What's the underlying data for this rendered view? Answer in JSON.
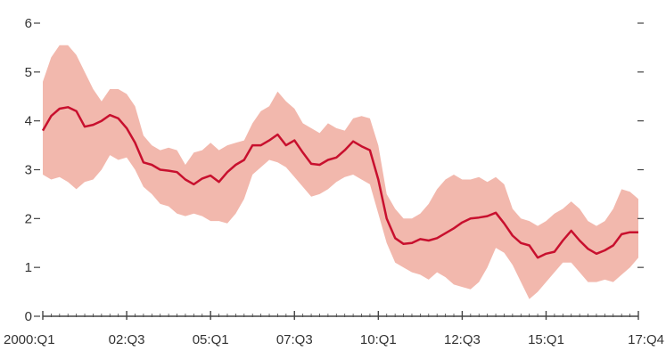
{
  "chart_data": {
    "type": "line",
    "title": "",
    "xlabel": "",
    "ylabel": "",
    "x_tick_labels": [
      "2000:Q1",
      "02:Q3",
      "05:Q1",
      "07:Q3",
      "10:Q1",
      "12:Q3",
      "15:Q1",
      "17:Q4"
    ],
    "y_tick_labels": [
      "0",
      "1",
      "2",
      "3",
      "4",
      "5",
      "6"
    ],
    "ylim": [
      0,
      6
    ],
    "grid": false,
    "legend": "none",
    "x": [
      "2000:Q1",
      "2000:Q2",
      "2000:Q3",
      "2000:Q4",
      "2001:Q1",
      "2001:Q2",
      "2001:Q3",
      "2001:Q4",
      "2002:Q1",
      "2002:Q2",
      "2002:Q3",
      "2002:Q4",
      "2003:Q1",
      "2003:Q2",
      "2003:Q3",
      "2003:Q4",
      "2004:Q1",
      "2004:Q2",
      "2004:Q3",
      "2004:Q4",
      "2005:Q1",
      "2005:Q2",
      "2005:Q3",
      "2005:Q4",
      "2006:Q1",
      "2006:Q2",
      "2006:Q3",
      "2006:Q4",
      "2007:Q1",
      "2007:Q2",
      "2007:Q3",
      "2007:Q4",
      "2008:Q1",
      "2008:Q2",
      "2008:Q3",
      "2008:Q4",
      "2009:Q1",
      "2009:Q2",
      "2009:Q3",
      "2009:Q4",
      "2010:Q1",
      "2010:Q2",
      "2010:Q3",
      "2010:Q4",
      "2011:Q1",
      "2011:Q2",
      "2011:Q3",
      "2011:Q4",
      "2012:Q1",
      "2012:Q2",
      "2012:Q3",
      "2012:Q4",
      "2013:Q1",
      "2013:Q2",
      "2013:Q3",
      "2013:Q4",
      "2014:Q1",
      "2014:Q2",
      "2014:Q3",
      "2014:Q4",
      "2015:Q1",
      "2015:Q2",
      "2015:Q3",
      "2015:Q4",
      "2016:Q1",
      "2016:Q2",
      "2016:Q3",
      "2016:Q4",
      "2017:Q1",
      "2017:Q2",
      "2017:Q3",
      "2017:Q4"
    ],
    "series": [
      {
        "values": [
          3.8,
          4.1,
          4.25,
          4.28,
          4.2,
          3.88,
          3.92,
          4.0,
          4.12,
          4.05,
          3.85,
          3.55,
          3.15,
          3.1,
          3.0,
          2.98,
          2.95,
          2.8,
          2.7,
          2.82,
          2.88,
          2.75,
          2.95,
          3.1,
          3.2,
          3.5,
          3.5,
          3.6,
          3.72,
          3.5,
          3.6,
          3.35,
          3.12,
          3.1,
          3.2,
          3.25,
          3.4,
          3.58,
          3.48,
          3.4,
          2.8,
          2.0,
          1.6,
          1.48,
          1.5,
          1.58,
          1.55,
          1.6,
          1.7,
          1.8,
          1.92,
          2.0,
          2.02,
          2.05,
          2.12,
          1.9,
          1.65,
          1.5,
          1.45,
          1.2,
          1.28,
          1.32,
          1.55,
          1.75,
          1.55,
          1.38,
          1.28,
          1.35,
          1.45,
          1.68,
          1.72,
          1.72
        ],
        "color": "#c8102e"
      }
    ],
    "band": {
      "upper": [
        4.8,
        5.3,
        5.55,
        5.55,
        5.35,
        5.0,
        4.65,
        4.4,
        4.65,
        4.65,
        4.55,
        4.3,
        3.7,
        3.5,
        3.4,
        3.45,
        3.4,
        3.1,
        3.35,
        3.4,
        3.55,
        3.4,
        3.5,
        3.55,
        3.6,
        3.95,
        4.2,
        4.3,
        4.6,
        4.4,
        4.25,
        3.95,
        3.85,
        3.75,
        3.95,
        3.85,
        3.8,
        4.05,
        4.1,
        4.05,
        3.5,
        2.5,
        2.2,
        2.0,
        2.0,
        2.1,
        2.3,
        2.6,
        2.8,
        2.9,
        2.8,
        2.8,
        2.85,
        2.75,
        2.85,
        2.7,
        2.2,
        2.0,
        1.95,
        1.85,
        1.95,
        2.1,
        2.2,
        2.35,
        2.2,
        1.95,
        1.85,
        1.95,
        2.2,
        2.6,
        2.55,
        2.4
      ],
      "lower": [
        2.9,
        2.8,
        2.85,
        2.75,
        2.6,
        2.75,
        2.8,
        3.0,
        3.3,
        3.2,
        3.25,
        3.0,
        2.65,
        2.5,
        2.3,
        2.25,
        2.1,
        2.05,
        2.1,
        2.05,
        1.95,
        1.95,
        1.9,
        2.1,
        2.4,
        2.9,
        3.05,
        3.2,
        3.15,
        3.05,
        2.85,
        2.65,
        2.45,
        2.5,
        2.6,
        2.75,
        2.85,
        2.9,
        2.8,
        2.7,
        2.1,
        1.5,
        1.1,
        1.0,
        0.9,
        0.85,
        0.75,
        0.9,
        0.8,
        0.65,
        0.6,
        0.55,
        0.7,
        1.0,
        1.4,
        1.3,
        1.05,
        0.7,
        0.35,
        0.5,
        0.7,
        0.9,
        1.1,
        1.1,
        0.9,
        0.7,
        0.7,
        0.75,
        0.7,
        0.85,
        1.0,
        1.2
      ],
      "color": "#f2b8ad"
    },
    "axis_color": "#444444"
  }
}
